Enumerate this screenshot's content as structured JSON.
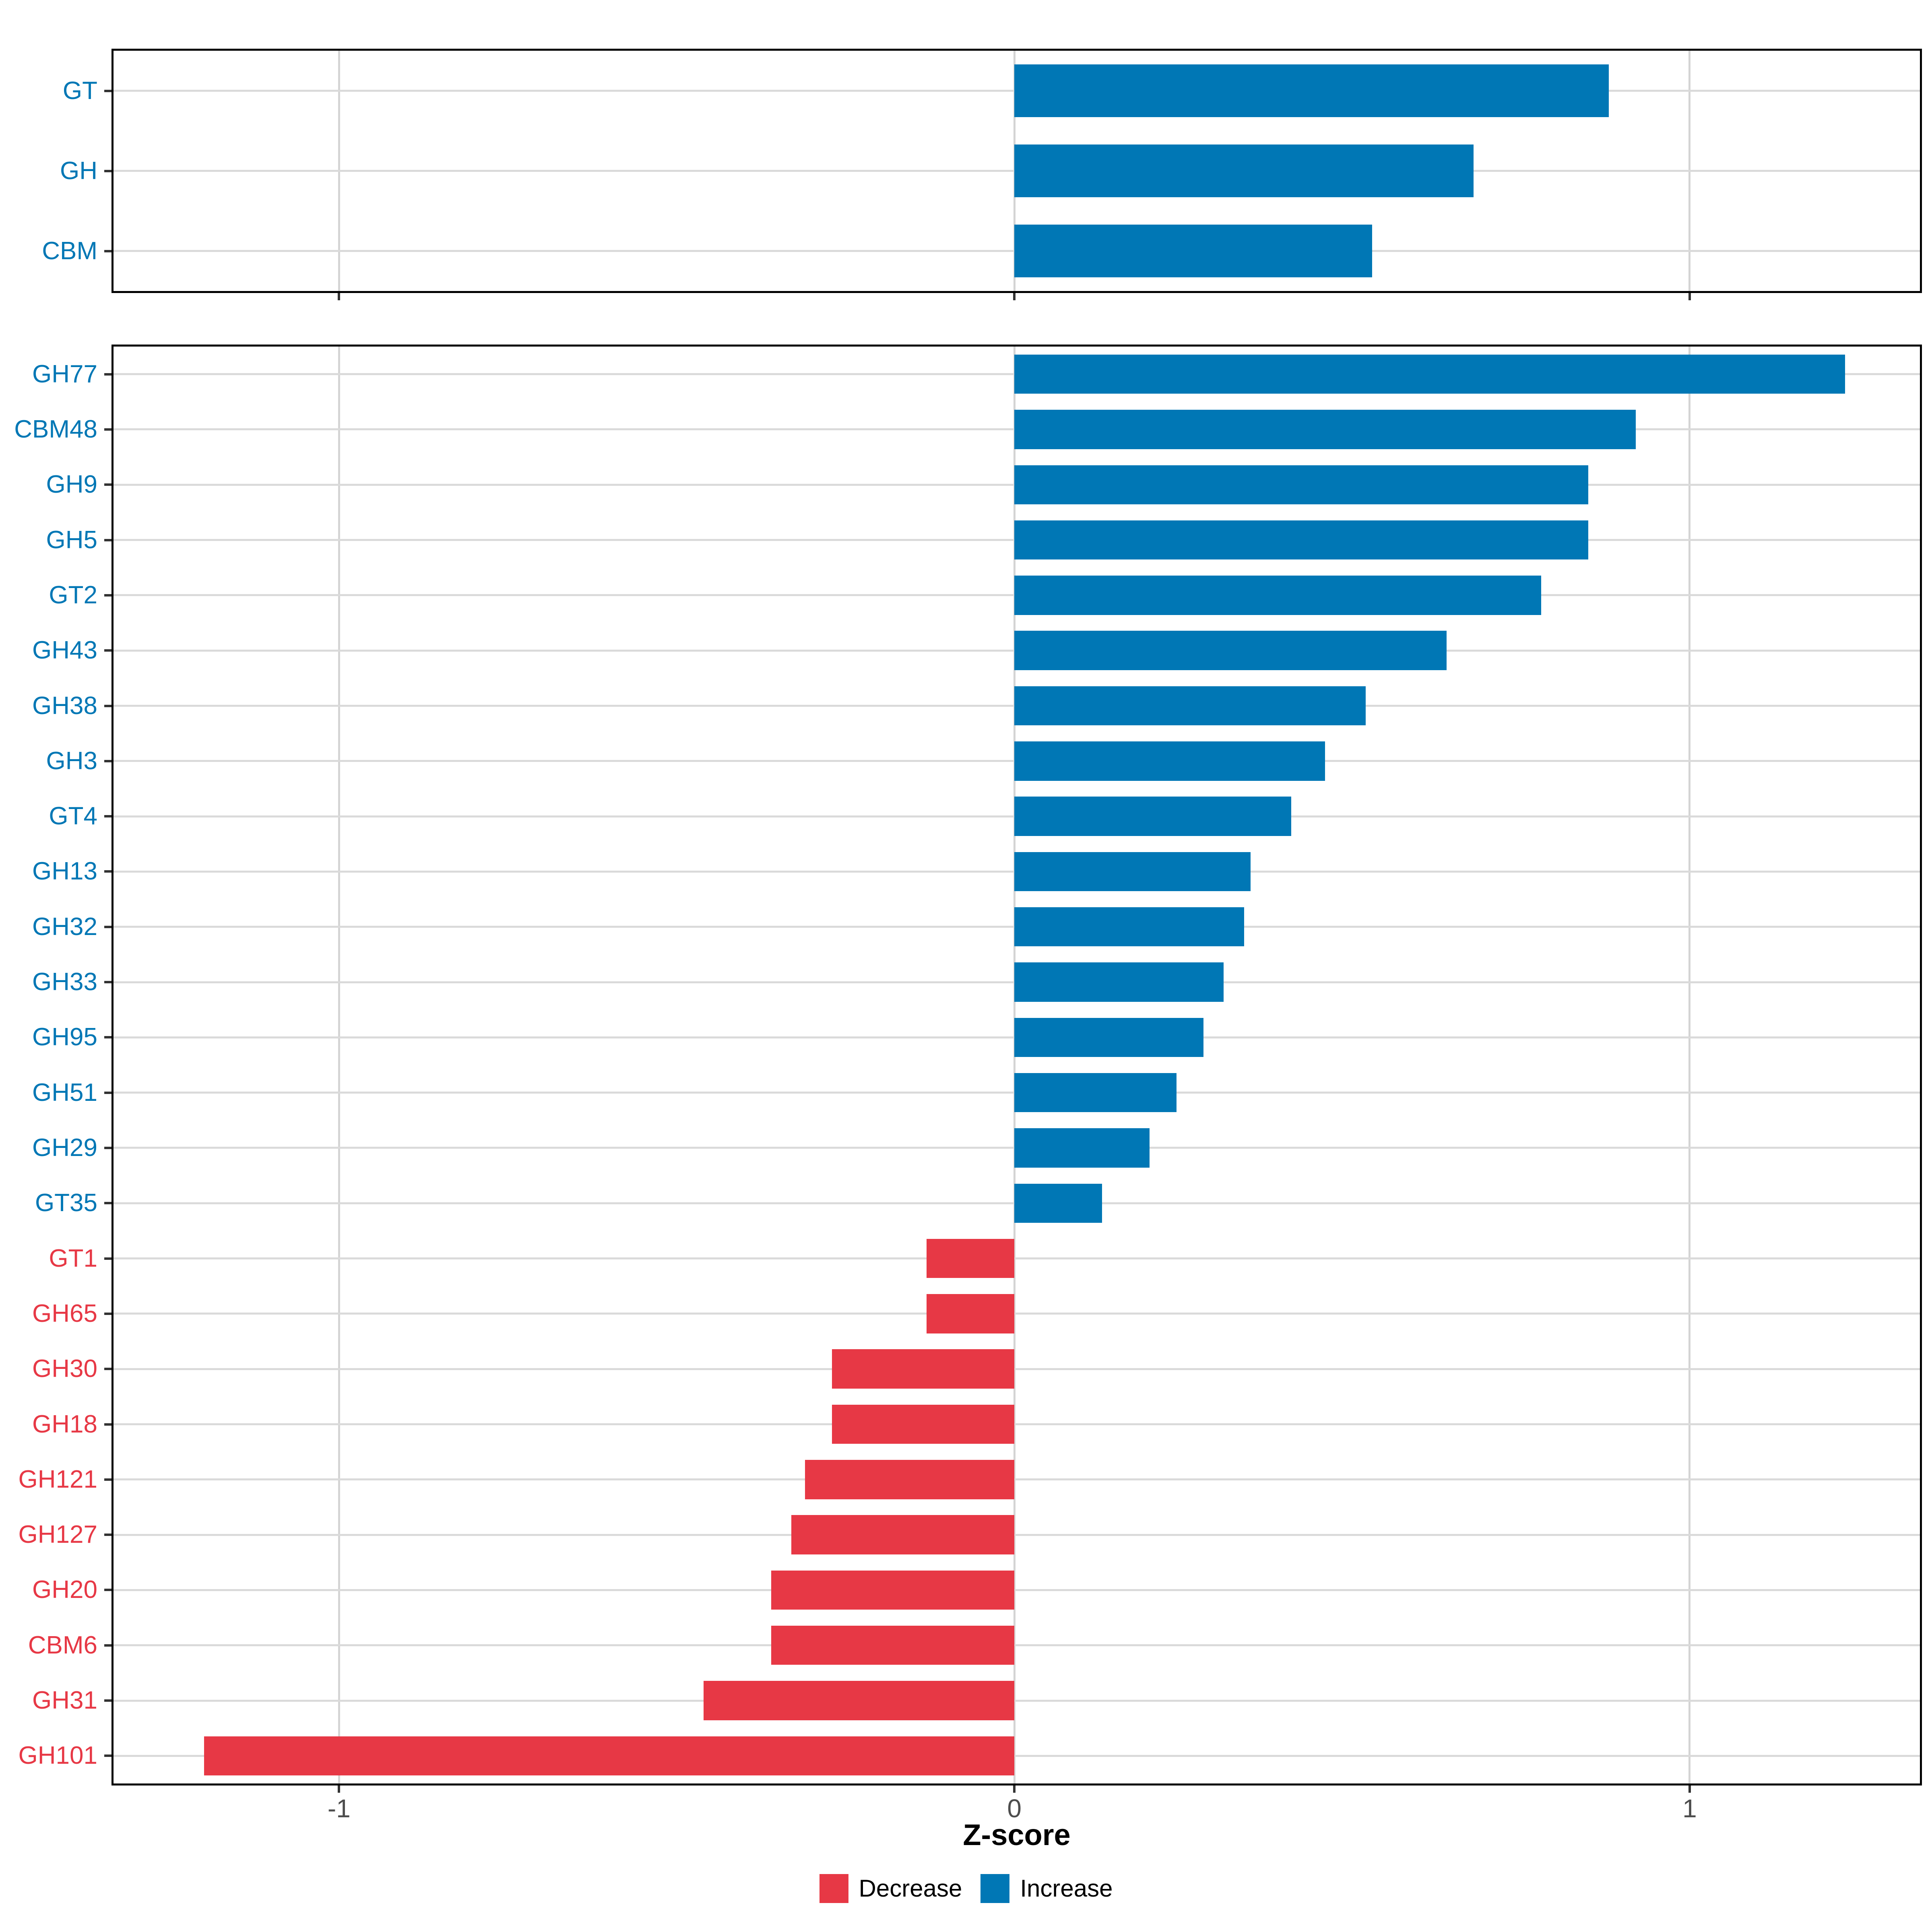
{
  "colors": {
    "increase": "#0077b5",
    "decrease": "#e73845",
    "grid_h": "#dadada",
    "grid_v": "#d4d4d4",
    "panel_border": "#000000",
    "tick": "#333333",
    "axis_text": "#4d4d4d",
    "background": "#ffffff"
  },
  "legend": {
    "items": [
      {
        "label": "Decrease",
        "key": "decrease",
        "color": "#e73845"
      },
      {
        "label": "Increase",
        "key": "increase",
        "color": "#0077b5"
      }
    ]
  },
  "chart_data": [
    {
      "type": "bar",
      "orientation": "horizontal",
      "panel": "overview",
      "title": "",
      "categories": [
        "GT",
        "GH",
        "CBM"
      ],
      "values": [
        0.88,
        0.68,
        0.53
      ],
      "groups": [
        "Increase",
        "Increase",
        "Increase"
      ],
      "xlim": [
        -1.334,
        1.341
      ],
      "x_ticks": [
        -1,
        0,
        1
      ],
      "x_tick_labels": [
        "-1",
        "0",
        "1"
      ],
      "show_x_tick_labels": false,
      "xlabel": "Z-score",
      "ylabel": "",
      "grid": true,
      "legend_position": "bottom"
    },
    {
      "type": "bar",
      "orientation": "horizontal",
      "panel": "families",
      "title": "",
      "categories": [
        "GH77",
        "CBM48",
        "GH9",
        "GH5",
        "GT2",
        "GH43",
        "GH38",
        "GH3",
        "GT4",
        "GH13",
        "GH32",
        "GH33",
        "GH95",
        "GH51",
        "GH29",
        "GT35",
        "GT1",
        "GH65",
        "GH30",
        "GH18",
        "GH121",
        "GH127",
        "GH20",
        "CBM6",
        "GH31",
        "GH101"
      ],
      "values": [
        1.23,
        0.92,
        0.85,
        0.85,
        0.78,
        0.64,
        0.52,
        0.46,
        0.41,
        0.35,
        0.34,
        0.31,
        0.28,
        0.24,
        0.2,
        0.13,
        -0.13,
        -0.13,
        -0.27,
        -0.27,
        -0.31,
        -0.33,
        -0.36,
        -0.36,
        -0.46,
        -1.2
      ],
      "groups": [
        "Increase",
        "Increase",
        "Increase",
        "Increase",
        "Increase",
        "Increase",
        "Increase",
        "Increase",
        "Increase",
        "Increase",
        "Increase",
        "Increase",
        "Increase",
        "Increase",
        "Increase",
        "Increase",
        "Decrease",
        "Decrease",
        "Decrease",
        "Decrease",
        "Decrease",
        "Decrease",
        "Decrease",
        "Decrease",
        "Decrease",
        "Decrease"
      ],
      "xlim": [
        -1.334,
        1.341
      ],
      "x_ticks": [
        -1,
        0,
        1
      ],
      "x_tick_labels": [
        "-1",
        "0",
        "1"
      ],
      "show_x_tick_labels": true,
      "xlabel": "Z-score",
      "ylabel": "",
      "grid": true,
      "legend_position": "bottom"
    }
  ]
}
